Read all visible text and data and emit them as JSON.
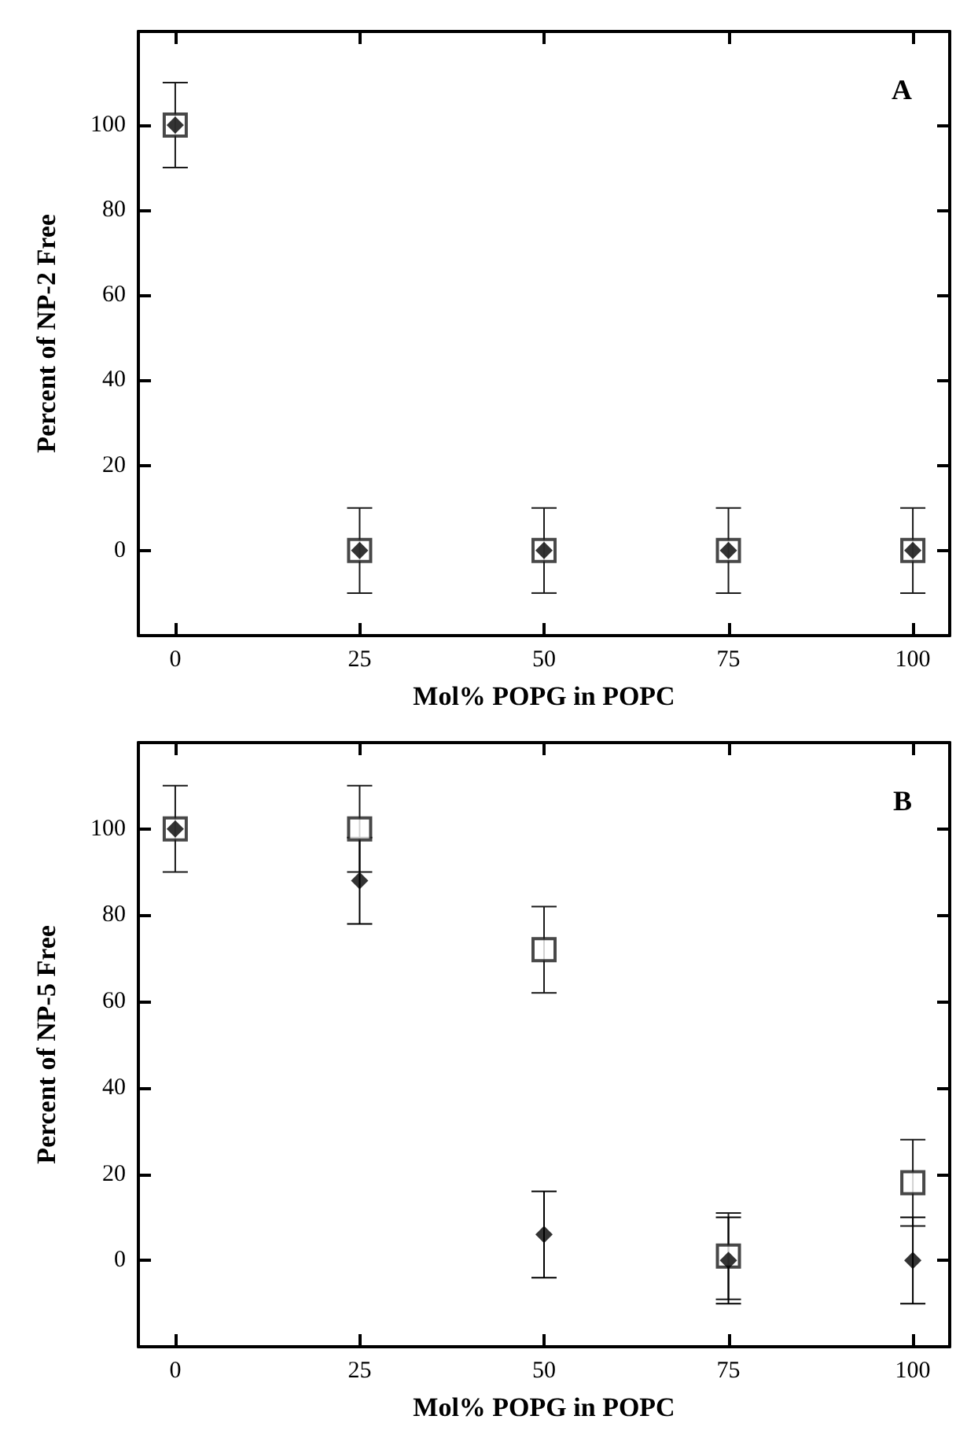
{
  "chart_data": [
    {
      "type": "scatter",
      "annotations": [
        "A"
      ],
      "xlabel": "Mol% POPG in POPC",
      "ylabel": "Percent of NP-2 Free",
      "x": [
        0,
        25,
        50,
        75,
        100
      ],
      "xlim": [
        -5,
        105
      ],
      "xticks": [
        0,
        25,
        50,
        75,
        100
      ],
      "ylim": [
        -20,
        122
      ],
      "yticks": [
        0,
        20,
        40,
        60,
        80,
        100
      ],
      "grid": false,
      "series": [
        {
          "marker": "square",
          "color": "#1a1a1a",
          "values": [
            100,
            0,
            0,
            0,
            0
          ],
          "errors": [
            10,
            10,
            10,
            10,
            10
          ]
        },
        {
          "marker": "diamond",
          "color": "#000000",
          "values": [
            100,
            0,
            0,
            0,
            0
          ],
          "errors": [
            10,
            10,
            10,
            10,
            10
          ]
        }
      ]
    },
    {
      "type": "scatter",
      "annotations": [
        "B"
      ],
      "xlabel": "Mol% POPG in POPC",
      "ylabel": "Percent of NP-5 Free",
      "x": [
        0,
        25,
        50,
        75,
        100
      ],
      "xlim": [
        -5,
        105
      ],
      "xticks": [
        0,
        25,
        50,
        75,
        100
      ],
      "ylim": [
        -20,
        120
      ],
      "yticks": [
        0,
        20,
        40,
        60,
        80,
        100
      ],
      "grid": false,
      "series": [
        {
          "marker": "square",
          "color": "#1a1a1a",
          "values": [
            100,
            100,
            72,
            1,
            18
          ],
          "errors": [
            10,
            10,
            10,
            10,
            10
          ]
        },
        {
          "marker": "diamond",
          "color": "#000000",
          "values": [
            100,
            88,
            6,
            0,
            0
          ],
          "errors": [
            10,
            10,
            10,
            10,
            10
          ]
        }
      ]
    }
  ]
}
